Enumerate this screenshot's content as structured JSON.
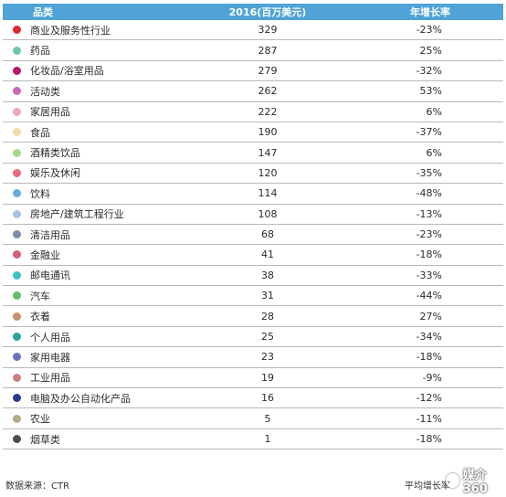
{
  "chart_data": {
    "type": "table",
    "columns": [
      "品类",
      "2016(百万美元)",
      "年增长率"
    ],
    "rows": [
      {
        "category": "商业及服务性行业",
        "value": "329",
        "growth": "-23%",
        "color": "#e0262e"
      },
      {
        "category": "药品",
        "value": "287",
        "growth": "25%",
        "color": "#6cc9b0"
      },
      {
        "category": "化妆品/浴室用品",
        "value": "279",
        "growth": "-32%",
        "color": "#b5186a"
      },
      {
        "category": "活动类",
        "value": "262",
        "growth": "53%",
        "color": "#c86bb8"
      },
      {
        "category": "家居用品",
        "value": "222",
        "growth": "6%",
        "color": "#f2a6b8"
      },
      {
        "category": "食品",
        "value": "190",
        "growth": "-37%",
        "color": "#f7d9a8"
      },
      {
        "category": "酒精类饮品",
        "value": "147",
        "growth": "6%",
        "color": "#a8d98c"
      },
      {
        "category": "娱乐及休闲",
        "value": "120",
        "growth": "-35%",
        "color": "#ec6a7e"
      },
      {
        "category": "饮料",
        "value": "114",
        "growth": "-48%",
        "color": "#6aaad9"
      },
      {
        "category": "房地产/建筑工程行业",
        "value": "108",
        "growth": "-13%",
        "color": "#a9c2e6"
      },
      {
        "category": "清洁用品",
        "value": "68",
        "growth": "-23%",
        "color": "#7c8ea6"
      },
      {
        "category": "金融业",
        "value": "41",
        "growth": "-18%",
        "color": "#d45e73"
      },
      {
        "category": "邮电通讯",
        "value": "38",
        "growth": "-33%",
        "color": "#3ec1c9"
      },
      {
        "category": "汽车",
        "value": "31",
        "growth": "-44%",
        "color": "#5fc06c"
      },
      {
        "category": "衣着",
        "value": "28",
        "growth": "27%",
        "color": "#c89272"
      },
      {
        "category": "个人用品",
        "value": "25",
        "growth": "-34%",
        "color": "#2aa39a"
      },
      {
        "category": "家用电器",
        "value": "23",
        "growth": "-18%",
        "color": "#6b73b7"
      },
      {
        "category": "工业用品",
        "value": "19",
        "growth": "-9%",
        "color": "#c98080"
      },
      {
        "category": "电脑及办公自动化产品",
        "value": "16",
        "growth": "-12%",
        "color": "#2a3a8f"
      },
      {
        "category": "农业",
        "value": "5",
        "growth": "-11%",
        "color": "#b4a98a"
      },
      {
        "category": "烟草类",
        "value": "1",
        "growth": "-18%",
        "color": "#4d4d4d"
      }
    ]
  },
  "footer": {
    "source": "数据来源：CTR",
    "average": "平均增长率"
  },
  "watermark": {
    "text": "媒介360",
    "icon": "wechat-icon"
  }
}
